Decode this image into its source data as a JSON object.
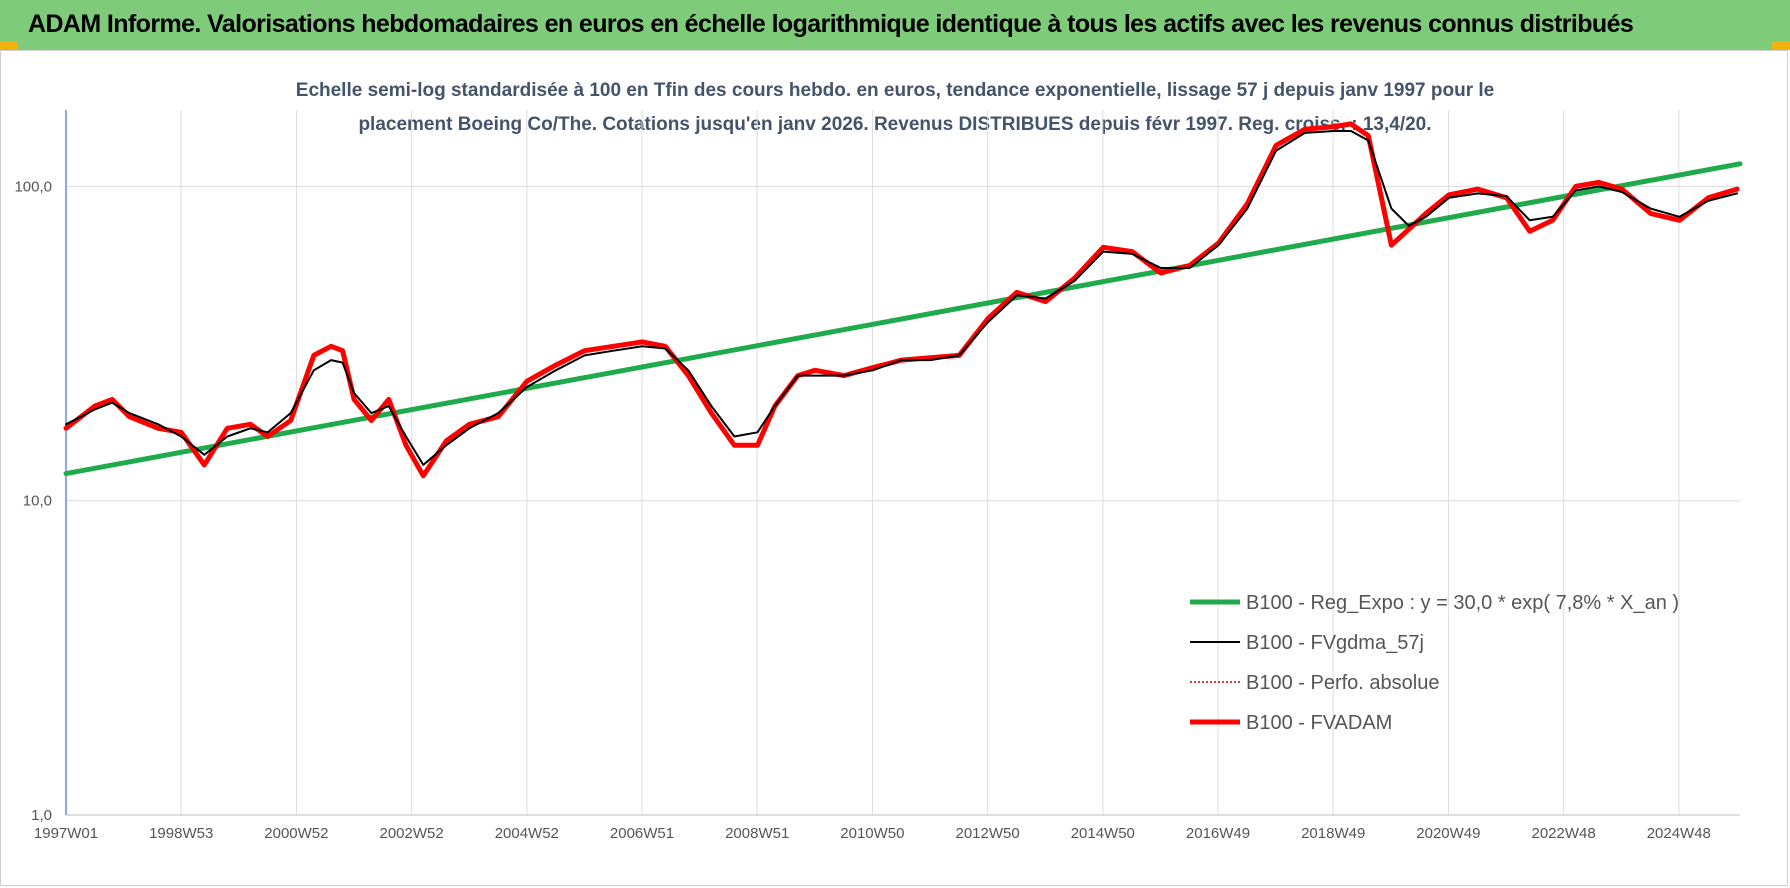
{
  "header": {
    "title": "ADAM Informe. Valorisations hebdomadaires en euros en échelle logarithmique identique à tous les actifs avec les revenus connus distribués",
    "background": "#7ecb7a",
    "corner_color": "#f2b10c"
  },
  "chart_data": {
    "type": "line",
    "subtitle_lines": [
      "Echelle semi-log standardisée à 100 en Tfin des cours hebdo. en euros, tendance exponentielle, lissage 57 j depuis janv 1997 pour le",
      "placement Boeing Co/The. Cotations jusqu'en janv 2026. Revenus DISTRIBUES depuis févr 1997. Reg. croiss. : 13,4/20."
    ],
    "y_scale": "log",
    "ylim": [
      1,
      175
    ],
    "y_ticks": [
      "1,0",
      "10,0",
      "100,0"
    ],
    "x_range": [
      1997.0,
      2026.05
    ],
    "x_tick_labels": [
      "1997W01",
      "1998W53",
      "2000W52",
      "2002W52",
      "2004W52",
      "2006W51",
      "2008W51",
      "2010W50",
      "2012W50",
      "2014W50",
      "2016W49",
      "2018W49",
      "2020W49",
      "2022W48",
      "2024W48"
    ],
    "grid": "vertical",
    "legend_position": "bottom-right",
    "series": [
      {
        "name": "B100 - Reg_Expo : y = 30,0 * exp( 7,8% *  X_an )",
        "color": "#1fab4c",
        "style": "thick",
        "x": [
          1997.0,
          2026.05
        ],
        "y": [
          12.2,
          118
        ]
      },
      {
        "name": "B100 - FVgdma_57j",
        "color": "#000000",
        "style": "thin",
        "x": [
          1997.0,
          1997.5,
          1997.8,
          1998.1,
          1998.6,
          1999.0,
          1999.4,
          1999.8,
          2000.2,
          2000.5,
          2000.9,
          2001.3,
          2001.6,
          2001.8,
          2002.0,
          2002.3,
          2002.6,
          2002.9,
          2003.2,
          2003.6,
          2004.0,
          2004.5,
          2005.0,
          2005.5,
          2006.0,
          2006.5,
          2007.0,
          2007.4,
          2007.8,
          2008.2,
          2008.6,
          2009.0,
          2009.3,
          2009.7,
          2010.0,
          2010.5,
          2011.0,
          2011.5,
          2012.0,
          2012.5,
          2013.0,
          2013.5,
          2014.0,
          2014.5,
          2015.0,
          2015.5,
          2016.0,
          2016.5,
          2017.0,
          2017.5,
          2018.0,
          2018.5,
          2019.0,
          2019.3,
          2019.6,
          2020.0,
          2020.3,
          2020.6,
          2021.0,
          2021.5,
          2022.0,
          2022.4,
          2022.8,
          2023.2,
          2023.6,
          2024.0,
          2024.5,
          2025.0,
          2025.5,
          2026.0
        ],
        "y": [
          17.5,
          19.5,
          20.5,
          19.0,
          17.5,
          16.0,
          14.0,
          16.0,
          17.0,
          16.5,
          19.0,
          26.0,
          28.0,
          27.5,
          22.0,
          19.0,
          20.0,
          16.0,
          13.0,
          15.0,
          17.0,
          19.0,
          23.0,
          26.0,
          29.0,
          30.0,
          31.0,
          30.5,
          26.0,
          20.0,
          16.0,
          16.5,
          20.0,
          25.0,
          25.0,
          25.0,
          26.0,
          28.0,
          28.0,
          29.0,
          37.0,
          45.0,
          44.0,
          50.0,
          62.0,
          61.0,
          55.0,
          55.0,
          65.0,
          85.0,
          130.0,
          148.0,
          150.0,
          150.0,
          140.0,
          85.0,
          75.0,
          80.0,
          92.0,
          95.0,
          93.0,
          78.0,
          80.0,
          97.0,
          100.0,
          96.0,
          85.0,
          80.0,
          90.0,
          95.0
        ]
      },
      {
        "name": "B100 - Perfo. absolue",
        "color": "#c00000",
        "style": "dotted",
        "x": [
          1997.0,
          1997.5,
          1997.8,
          1998.1,
          1998.6,
          1999.0,
          1999.4,
          1999.8,
          2000.2,
          2000.5,
          2000.9,
          2001.3,
          2001.6,
          2001.8,
          2002.0,
          2002.3,
          2002.6,
          2002.9,
          2003.2,
          2003.6,
          2004.0,
          2004.5,
          2005.0,
          2005.5,
          2006.0,
          2006.5,
          2007.0,
          2007.4,
          2007.8,
          2008.2,
          2008.6,
          2009.0,
          2009.3,
          2009.7,
          2010.0,
          2010.5,
          2011.0,
          2011.5,
          2012.0,
          2012.5,
          2013.0,
          2013.5,
          2014.0,
          2014.5,
          2015.0,
          2015.5,
          2016.0,
          2016.5,
          2017.0,
          2017.5,
          2018.0,
          2018.5,
          2019.0,
          2019.3,
          2019.6,
          2020.0,
          2020.3,
          2020.6,
          2021.0,
          2021.5,
          2022.0,
          2022.4,
          2022.8,
          2023.2,
          2023.6,
          2024.0,
          2024.5,
          2025.0,
          2025.5,
          2026.0
        ],
        "y": [
          17.0,
          20.0,
          21.0,
          18.5,
          17.0,
          16.5,
          13.0,
          17.0,
          17.5,
          16.0,
          18.0,
          29.0,
          31.0,
          30.0,
          21.0,
          18.0,
          21.0,
          15.0,
          12.0,
          15.5,
          17.5,
          18.5,
          24.0,
          27.0,
          30.0,
          31.0,
          32.0,
          31.0,
          25.0,
          19.0,
          15.0,
          15.0,
          20.0,
          25.0,
          26.0,
          25.0,
          26.5,
          28.0,
          28.5,
          29.0,
          38.0,
          46.0,
          43.0,
          51.0,
          64.0,
          62.0,
          53.0,
          56.0,
          66.0,
          88.0,
          135.0,
          152.0,
          155.0,
          158.0,
          145.0,
          65.0,
          73.0,
          82.0,
          94.0,
          98.0,
          92.0,
          72.0,
          78.0,
          100.0,
          103.0,
          98.0,
          82.0,
          78.0,
          92.0,
          98.0
        ]
      },
      {
        "name": "B100 - FVADAM",
        "color": "#ff0000",
        "style": "thick",
        "x": [
          1997.0,
          1997.5,
          1997.8,
          1998.1,
          1998.6,
          1999.0,
          1999.4,
          1999.8,
          2000.2,
          2000.5,
          2000.9,
          2001.3,
          2001.6,
          2001.8,
          2002.0,
          2002.3,
          2002.6,
          2002.9,
          2003.2,
          2003.6,
          2004.0,
          2004.5,
          2005.0,
          2005.5,
          2006.0,
          2006.5,
          2007.0,
          2007.4,
          2007.8,
          2008.2,
          2008.6,
          2009.0,
          2009.3,
          2009.7,
          2010.0,
          2010.5,
          2011.0,
          2011.5,
          2012.0,
          2012.5,
          2013.0,
          2013.5,
          2014.0,
          2014.5,
          2015.0,
          2015.5,
          2016.0,
          2016.5,
          2017.0,
          2017.5,
          2018.0,
          2018.5,
          2019.0,
          2019.3,
          2019.6,
          2020.0,
          2020.3,
          2020.6,
          2021.0,
          2021.5,
          2022.0,
          2022.4,
          2022.8,
          2023.2,
          2023.6,
          2024.0,
          2024.5,
          2025.0,
          2025.5,
          2026.0
        ],
        "y": [
          17.0,
          20.0,
          21.0,
          18.5,
          17.0,
          16.5,
          13.0,
          17.0,
          17.5,
          16.0,
          18.0,
          29.0,
          31.0,
          30.0,
          21.0,
          18.0,
          21.0,
          15.0,
          12.0,
          15.5,
          17.5,
          18.5,
          24.0,
          27.0,
          30.0,
          31.0,
          32.0,
          31.0,
          25.0,
          19.0,
          15.0,
          15.0,
          20.0,
          25.0,
          26.0,
          25.0,
          26.5,
          28.0,
          28.5,
          29.0,
          38.0,
          46.0,
          43.0,
          51.0,
          64.0,
          62.0,
          53.0,
          56.0,
          66.0,
          88.0,
          135.0,
          152.0,
          155.0,
          158.0,
          145.0,
          65.0,
          73.0,
          82.0,
          94.0,
          98.0,
          92.0,
          72.0,
          78.0,
          100.0,
          103.0,
          98.0,
          82.0,
          78.0,
          92.0,
          98.0
        ]
      }
    ]
  }
}
